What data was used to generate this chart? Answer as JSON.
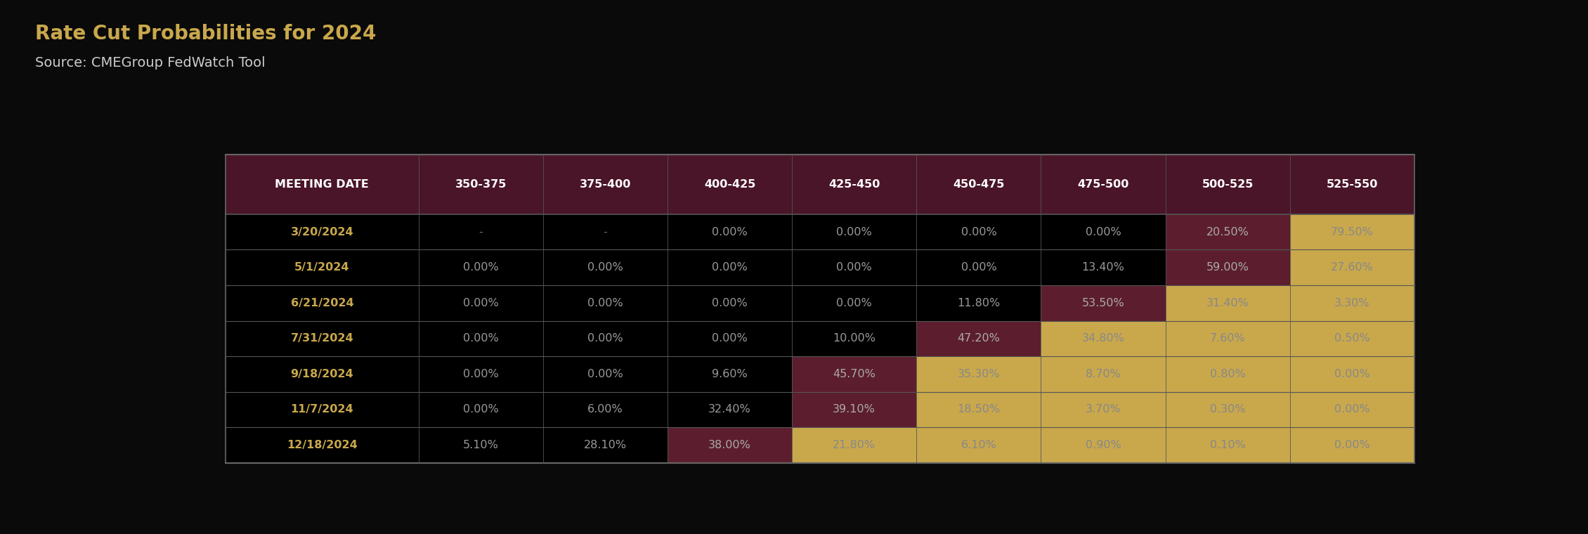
{
  "title": "Rate Cut Probabilities for 2024",
  "source": "Source: CMEGroup FedWatch Tool",
  "background_color": "#0a0a0a",
  "header_bg": "#4a1528",
  "header_text_color": "#ffffff",
  "row_date_color": "#c9a84c",
  "columns": [
    "MEETING DATE",
    "350-375",
    "375-400",
    "400-425",
    "425-450",
    "450-475",
    "475-500",
    "500-525",
    "525-550"
  ],
  "rows": [
    {
      "date": "3/20/2024",
      "values": [
        "-",
        "-",
        "0.00%",
        "0.00%",
        "0.00%",
        "0.00%",
        "20.50%",
        "79.50%"
      ]
    },
    {
      "date": "5/1/2024",
      "values": [
        "0.00%",
        "0.00%",
        "0.00%",
        "0.00%",
        "0.00%",
        "13.40%",
        "59.00%",
        "27.60%"
      ]
    },
    {
      "date": "6/21/2024",
      "values": [
        "0.00%",
        "0.00%",
        "0.00%",
        "0.00%",
        "11.80%",
        "53.50%",
        "31.40%",
        "3.30%"
      ]
    },
    {
      "date": "7/31/2024",
      "values": [
        "0.00%",
        "0.00%",
        "0.00%",
        "10.00%",
        "47.20%",
        "34.80%",
        "7.60%",
        "0.50%"
      ]
    },
    {
      "date": "9/18/2024",
      "values": [
        "0.00%",
        "0.00%",
        "9.60%",
        "45.70%",
        "35.30%",
        "8.70%",
        "0.80%",
        "0.00%"
      ]
    },
    {
      "date": "11/7/2024",
      "values": [
        "0.00%",
        "6.00%",
        "32.40%",
        "39.10%",
        "18.50%",
        "3.70%",
        "0.30%",
        "0.00%"
      ]
    },
    {
      "date": "12/18/2024",
      "values": [
        "5.10%",
        "28.10%",
        "38.00%",
        "21.80%",
        "6.10%",
        "0.90%",
        "0.10%",
        "0.00%"
      ]
    }
  ],
  "cell_colors": {
    "3/20/2024": [
      null,
      null,
      null,
      null,
      null,
      null,
      "#5c1e2e",
      "#c9a84c"
    ],
    "5/1/2024": [
      null,
      null,
      null,
      null,
      null,
      null,
      "#5c1e2e",
      "#c9a84c"
    ],
    "6/21/2024": [
      null,
      null,
      null,
      null,
      null,
      "#5c1e2e",
      "#c9a84c",
      "#c9a84c"
    ],
    "7/31/2024": [
      null,
      null,
      null,
      null,
      "#5c1e2e",
      "#c9a84c",
      "#c9a84c",
      "#c9a84c"
    ],
    "9/18/2024": [
      null,
      null,
      null,
      "#5c1e2e",
      "#c9a84c",
      "#c9a84c",
      "#c9a84c",
      "#c9a84c"
    ],
    "11/7/2024": [
      null,
      null,
      null,
      "#5c1e2e",
      "#c9a84c",
      "#c9a84c",
      "#c9a84c",
      "#c9a84c"
    ],
    "12/18/2024": [
      null,
      null,
      "#5c1e2e",
      "#c9a84c",
      "#c9a84c",
      "#c9a84c",
      "#c9a84c",
      "#c9a84c"
    ]
  },
  "dark_red": "#5c1e2e",
  "gold": "#c9a84c",
  "title_color": "#c9a84c",
  "source_color": "#cccccc",
  "title_fontsize": 20,
  "source_fontsize": 14,
  "cell_text_default": "#999999",
  "cell_text_on_dark_red": "#aaaaaa",
  "cell_text_on_gold": "#888888",
  "divider_color": "#555555",
  "outer_border_color": "#666666"
}
